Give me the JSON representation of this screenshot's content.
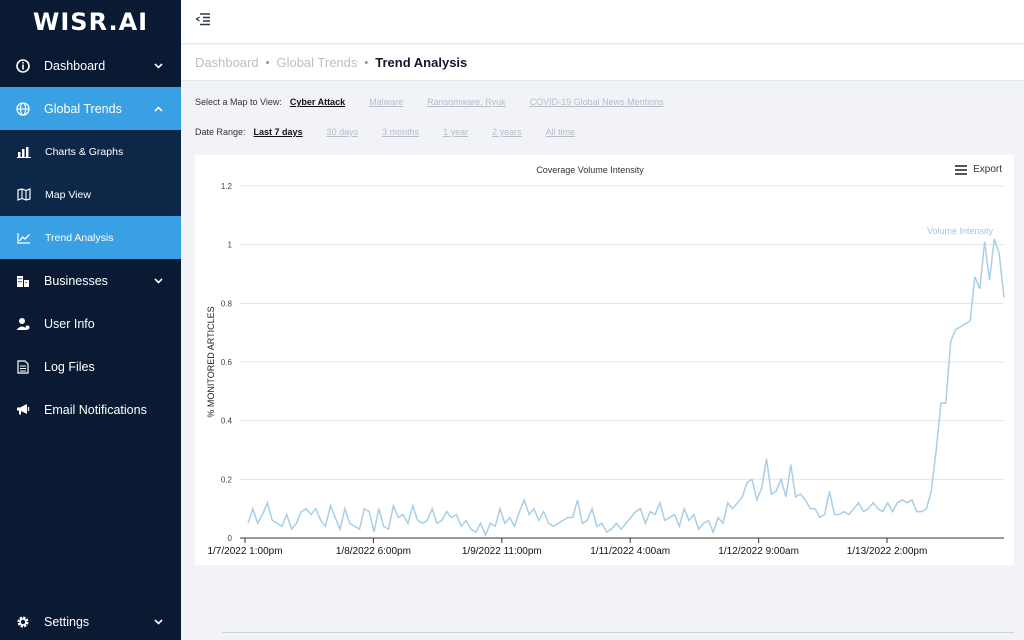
{
  "app": {
    "logo": "WISR.AI"
  },
  "sidebar": {
    "items": [
      {
        "label": "Dashboard",
        "icon": "info-circle-icon"
      },
      {
        "label": "Global Trends",
        "icon": "globe-icon"
      },
      {
        "label": "Charts & Graphs",
        "icon": "bar-chart-icon"
      },
      {
        "label": "Map View",
        "icon": "map-icon"
      },
      {
        "label": "Trend Analysis",
        "icon": "line-chart-icon"
      },
      {
        "label": "Businesses",
        "icon": "buildings-icon"
      },
      {
        "label": "User Info",
        "icon": "user-icon"
      },
      {
        "label": "Log Files",
        "icon": "file-icon"
      },
      {
        "label": "Email Notifications",
        "icon": "megaphone-icon"
      },
      {
        "label": "Settings",
        "icon": "gear-icon"
      }
    ]
  },
  "breadcrumb": {
    "items": [
      "Dashboard",
      "Global Trends"
    ],
    "current": "Trend Analysis"
  },
  "map_select": {
    "label": "Select a Map to View:",
    "options": [
      "Cyber Attack",
      "Malware",
      "Ransomware, Ryuk",
      "COVID-19 Global News Mentions"
    ],
    "selected": "Cyber Attack"
  },
  "date_range": {
    "label": "Date Range:",
    "options": [
      "Last 7 days",
      "30 days",
      "3 months",
      "1 year",
      "2 years",
      "All time"
    ],
    "selected": "Last 7 days"
  },
  "export_label": "Export",
  "colors": {
    "sidebar": "#0a1a33",
    "accent": "#3aa0e4",
    "line": "#a7cfe6"
  },
  "chart_data": {
    "type": "line",
    "title": "Coverage Volume Intensity",
    "ylabel": "% MONITORED ARTICLES",
    "xlabel": "",
    "ylim": [
      0,
      1.2
    ],
    "yticks": [
      "0",
      "0.2",
      "0.4",
      "0.6",
      "0.8",
      "1",
      "1.2"
    ],
    "xticks": [
      "1/7/2022 1:00pm",
      "1/8/2022 6:00pm",
      "1/9/2022 11:00pm",
      "1/11/2022 4:00am",
      "1/12/2022 9:00am",
      "1/13/2022 2:00pm"
    ],
    "grid": true,
    "series": [
      {
        "name": "Volume Intensity",
        "values": [
          0.05,
          0.1,
          0.05,
          0.08,
          0.12,
          0.06,
          0.05,
          0.04,
          0.08,
          0.03,
          0.05,
          0.09,
          0.1,
          0.08,
          0.1,
          0.06,
          0.04,
          0.11,
          0.07,
          0.03,
          0.1,
          0.05,
          0.04,
          0.03,
          0.1,
          0.09,
          0.02,
          0.1,
          0.04,
          0.03,
          0.11,
          0.07,
          0.08,
          0.05,
          0.11,
          0.06,
          0.05,
          0.06,
          0.1,
          0.05,
          0.06,
          0.09,
          0.07,
          0.08,
          0.04,
          0.06,
          0.03,
          0.02,
          0.05,
          0.01,
          0.05,
          0.04,
          0.1,
          0.05,
          0.07,
          0.04,
          0.09,
          0.13,
          0.08,
          0.1,
          0.06,
          0.09,
          0.05,
          0.04,
          0.05,
          0.06,
          0.07,
          0.07,
          0.13,
          0.05,
          0.06,
          0.1,
          0.04,
          0.05,
          0.02,
          0.03,
          0.05,
          0.03,
          0.05,
          0.07,
          0.09,
          0.1,
          0.05,
          0.09,
          0.08,
          0.12,
          0.06,
          0.07,
          0.08,
          0.04,
          0.1,
          0.06,
          0.08,
          0.03,
          0.05,
          0.06,
          0.02,
          0.07,
          0.05,
          0.12,
          0.1,
          0.12,
          0.14,
          0.19,
          0.2,
          0.13,
          0.17,
          0.27,
          0.15,
          0.16,
          0.2,
          0.14,
          0.25,
          0.14,
          0.15,
          0.13,
          0.1,
          0.1,
          0.07,
          0.08,
          0.16,
          0.08,
          0.08,
          0.09,
          0.08,
          0.1,
          0.12,
          0.09,
          0.1,
          0.12,
          0.1,
          0.09,
          0.12,
          0.09,
          0.12,
          0.13,
          0.12,
          0.13,
          0.09,
          0.09,
          0.1,
          0.16,
          0.3,
          0.46,
          0.46,
          0.67,
          0.71,
          0.72,
          0.73,
          0.74,
          0.89,
          0.85,
          1.01,
          0.88,
          1.02,
          0.97,
          0.82
        ]
      }
    ]
  }
}
